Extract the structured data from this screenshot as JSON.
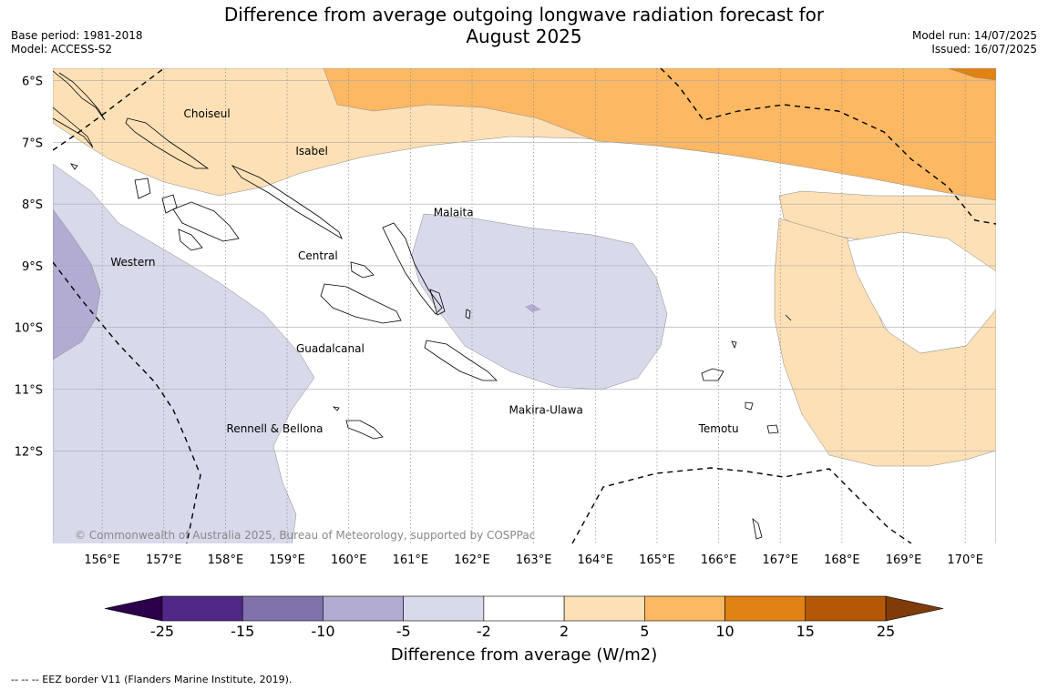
{
  "title_line1": "Difference from average outgoing longwave radiation forecast for",
  "title_line2": "August 2025",
  "base_period": "Base period: 1981-2018",
  "model": "Model: ACCESS-S2",
  "model_run": "Model run: 14/07/2025",
  "issued": "Issued: 16/07/2025",
  "copyright": "© Commonwealth of Australia 2025, Bureau of Meteorology, supported by COSPPac",
  "footnote": "--  --  -- EEZ border V11 (Flanders Marine Institute, 2019).",
  "map": {
    "lon_range": [
      155.2,
      170.5
    ],
    "lat_range": [
      -13.5,
      -5.8
    ],
    "lon_ticks": [
      "156°E",
      "157°E",
      "158°E",
      "159°E",
      "160°E",
      "161°E",
      "162°E",
      "163°E",
      "164°E",
      "165°E",
      "166°E",
      "167°E",
      "168°E",
      "169°E",
      "170°E"
    ],
    "lat_ticks": [
      "6°S",
      "7°S",
      "8°S",
      "9°S",
      "10°S",
      "11°S",
      "12°S"
    ],
    "province_labels": [
      {
        "name": "Choiseul",
        "lon": 157.7,
        "lat": -6.6
      },
      {
        "name": "Isabel",
        "lon": 159.4,
        "lat": -7.2
      },
      {
        "name": "Malaita",
        "lon": 161.7,
        "lat": -8.2
      },
      {
        "name": "Central",
        "lon": 159.5,
        "lat": -8.9
      },
      {
        "name": "Western",
        "lon": 156.5,
        "lat": -9.0
      },
      {
        "name": "Guadalcanal",
        "lon": 159.7,
        "lat": -10.4
      },
      {
        "name": "Makira-Ulawa",
        "lon": 163.2,
        "lat": -11.4
      },
      {
        "name": "Temotu",
        "lon": 166.0,
        "lat": -11.7
      },
      {
        "name": "Rennell & Bellona",
        "lon": 158.8,
        "lat": -11.7
      }
    ]
  },
  "colorbar": {
    "label": "Difference from average (W/m2)",
    "ticks": [
      "-25",
      "-15",
      "-10",
      "-5",
      "-2",
      "2",
      "5",
      "10",
      "15",
      "25"
    ],
    "colors": [
      "#512888",
      "#8073ac",
      "#b2abd2",
      "#d8daeb",
      "#ffffff",
      "#fee0b6",
      "#fdb863",
      "#e08214",
      "#b35806"
    ],
    "under_color": "#2d004b",
    "over_color": "#7f3b08"
  }
}
